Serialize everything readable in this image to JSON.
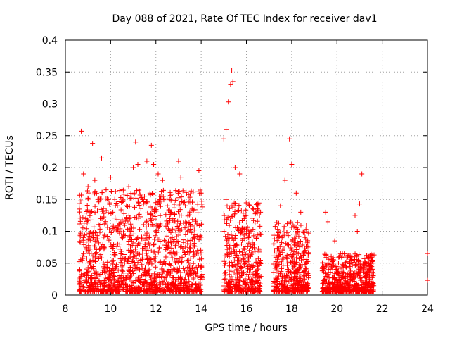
{
  "chart_data": {
    "type": "scatter",
    "title": "Day 088 of 2021, Rate Of TEC Index for receiver dav1",
    "xlabel": "GPS time / hours",
    "ylabel": "ROTI / TECUs",
    "xlim": [
      8,
      24
    ],
    "ylim": [
      0,
      0.4
    ],
    "xticks": [
      8,
      10,
      12,
      14,
      16,
      18,
      20,
      22,
      24
    ],
    "yticks": [
      0,
      0.05,
      0.1,
      0.15,
      0.2,
      0.25,
      0.3,
      0.35,
      0.4
    ],
    "grid": true,
    "marker": "+",
    "color": "#ff0000",
    "series": [
      {
        "points": [
          [
            8.7,
            0.257
          ],
          [
            9.2,
            0.238
          ],
          [
            8.8,
            0.19
          ],
          [
            9.0,
            0.17
          ],
          [
            9.3,
            0.18
          ],
          [
            9.6,
            0.215
          ],
          [
            9.8,
            0.165
          ],
          [
            10.0,
            0.185
          ],
          [
            10.3,
            0.14
          ],
          [
            10.5,
            0.165
          ],
          [
            10.8,
            0.17
          ],
          [
            11.0,
            0.2
          ],
          [
            11.1,
            0.24
          ],
          [
            11.2,
            0.205
          ],
          [
            11.6,
            0.21
          ],
          [
            11.8,
            0.235
          ],
          [
            11.9,
            0.205
          ],
          [
            12.1,
            0.19
          ],
          [
            12.3,
            0.18
          ],
          [
            12.6,
            0.15
          ],
          [
            13.0,
            0.21
          ],
          [
            13.1,
            0.185
          ],
          [
            13.3,
            0.14
          ],
          [
            13.6,
            0.135
          ],
          [
            13.9,
            0.195
          ],
          [
            14.0,
            0.16
          ],
          [
            8.9,
            0.12
          ],
          [
            9.5,
            0.11
          ],
          [
            10.1,
            0.13
          ],
          [
            10.7,
            0.12
          ],
          [
            11.4,
            0.15
          ],
          [
            12.0,
            0.145
          ],
          [
            12.8,
            0.12
          ],
          [
            13.5,
            0.11
          ],
          [
            9.0,
            0.07
          ],
          [
            10.4,
            0.08
          ],
          [
            11.7,
            0.09
          ],
          [
            13.0,
            0.08
          ],
          [
            15.0,
            0.245
          ],
          [
            15.1,
            0.26
          ],
          [
            15.2,
            0.303
          ],
          [
            15.3,
            0.33
          ],
          [
            15.35,
            0.353
          ],
          [
            15.4,
            0.335
          ],
          [
            15.5,
            0.2
          ],
          [
            15.7,
            0.19
          ],
          [
            15.9,
            0.12
          ],
          [
            16.1,
            0.09
          ],
          [
            16.3,
            0.08
          ],
          [
            16.6,
            0.05
          ],
          [
            15.1,
            0.15
          ],
          [
            15.4,
            0.14
          ],
          [
            17.2,
            0.08
          ],
          [
            17.5,
            0.14
          ],
          [
            17.7,
            0.18
          ],
          [
            17.9,
            0.245
          ],
          [
            18.0,
            0.205
          ],
          [
            18.2,
            0.16
          ],
          [
            18.4,
            0.13
          ],
          [
            18.6,
            0.07
          ],
          [
            19.5,
            0.13
          ],
          [
            19.6,
            0.115
          ],
          [
            19.9,
            0.085
          ],
          [
            20.1,
            0.06
          ],
          [
            20.8,
            0.125
          ],
          [
            20.9,
            0.1
          ],
          [
            21.0,
            0.143
          ],
          [
            21.1,
            0.19
          ],
          [
            21.4,
            0.06
          ],
          [
            21.6,
            0.05
          ],
          [
            24.0,
            0.065
          ],
          [
            24.0,
            0.023
          ]
        ]
      }
    ]
  }
}
